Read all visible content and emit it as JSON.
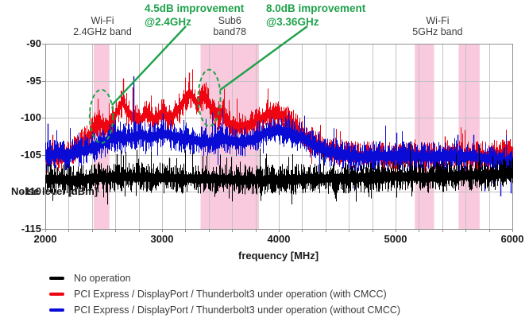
{
  "chart_data": {
    "type": "line",
    "title": "",
    "xlabel": "frequency [MHz]",
    "ylabel": "Noise level [dBm]",
    "xlim": [
      2000,
      6000
    ],
    "ylim": [
      -115,
      -90
    ],
    "x_ticks": [
      "2000",
      "3000",
      "4000",
      "5000",
      "6000"
    ],
    "x_tick_values": [
      2000,
      3000,
      4000,
      5000,
      6000
    ],
    "y_ticks": [
      "-90",
      "-95",
      "-100",
      "-105",
      "-110",
      "-115"
    ],
    "y_tick_values": [
      -90,
      -95,
      -100,
      -105,
      -110,
      -115
    ],
    "grid": {
      "x_step_mhz": 200,
      "y_step_db": 5,
      "color": "#c3c3c3",
      "border_color": "#909090"
    },
    "legend_position": "bottom-left",
    "highlight_band_color": "#f9cadd",
    "highlight_bands": [
      {
        "name": "wifi-2.4ghz",
        "from_mhz": 2415,
        "to_mhz": 2550
      },
      {
        "name": "sub6-band78",
        "from_mhz": 3330,
        "to_mhz": 3830
      },
      {
        "name": "wifi-5ghz-low",
        "from_mhz": 5165,
        "to_mhz": 5330
      },
      {
        "name": "wifi-5ghz-high",
        "from_mhz": 5540,
        "to_mhz": 5720
      }
    ],
    "band_labels": [
      {
        "lines": [
          "Wi-Fi",
          "2.4GHz band"
        ],
        "center_mhz": 2490
      },
      {
        "lines": [
          "Sub6",
          "band78"
        ],
        "center_mhz": 3580
      },
      {
        "lines": [
          "Wi-Fi",
          "5GHz band"
        ],
        "center_mhz": 5360
      }
    ],
    "series": [
      {
        "name": "No operation",
        "color": "#000000",
        "noise_halfwidth_db": 2.1,
        "envelope": [
          [
            2000,
            -108.3
          ],
          [
            2300,
            -108.4
          ],
          [
            2600,
            -107.9
          ],
          [
            2900,
            -108.1
          ],
          [
            3200,
            -108.2
          ],
          [
            3500,
            -108.3
          ],
          [
            3800,
            -108.4
          ],
          [
            4100,
            -108.3
          ],
          [
            4400,
            -108.2
          ],
          [
            4700,
            -108.1
          ],
          [
            5000,
            -107.9
          ],
          [
            5300,
            -108.0
          ],
          [
            5600,
            -107.8
          ],
          [
            6000,
            -107.6
          ]
        ],
        "spikes": [
          [
            2615,
            -104.9
          ],
          [
            3060,
            -105.4
          ],
          [
            4480,
            -110.9
          ],
          [
            5200,
            -105.6
          ]
        ]
      },
      {
        "name": "PCI Express / DisplayPort / Thunderbolt3 under operation (with CMCC)",
        "color": "#ee0511",
        "noise_halfwidth_db": 2.0,
        "envelope": [
          [
            2000,
            -105.4
          ],
          [
            2100,
            -105.2
          ],
          [
            2200,
            -105.0
          ],
          [
            2300,
            -103.6
          ],
          [
            2400,
            -101.9
          ],
          [
            2450,
            -100.4
          ],
          [
            2500,
            -101.3
          ],
          [
            2560,
            -100.7
          ],
          [
            2620,
            -99.0
          ],
          [
            2660,
            -97.7
          ],
          [
            2700,
            -99.3
          ],
          [
            2760,
            -99.9
          ],
          [
            2810,
            -100.3
          ],
          [
            2870,
            -99.4
          ],
          [
            2930,
            -100.2
          ],
          [
            3000,
            -99.3
          ],
          [
            3060,
            -100.2
          ],
          [
            3130,
            -99.0
          ],
          [
            3200,
            -97.4
          ],
          [
            3240,
            -96.8
          ],
          [
            3290,
            -98.0
          ],
          [
            3330,
            -97.4
          ],
          [
            3370,
            -96.9
          ],
          [
            3410,
            -98.3
          ],
          [
            3460,
            -99.7
          ],
          [
            3520,
            -99.3
          ],
          [
            3580,
            -100.8
          ],
          [
            3650,
            -101.3
          ],
          [
            3720,
            -101.0
          ],
          [
            3800,
            -100.6
          ],
          [
            3900,
            -99.5
          ],
          [
            4000,
            -99.7
          ],
          [
            4100,
            -100.5
          ],
          [
            4200,
            -102.2
          ],
          [
            4300,
            -103.4
          ],
          [
            4400,
            -104.2
          ],
          [
            4500,
            -104.7
          ],
          [
            4700,
            -105.1
          ],
          [
            4900,
            -105.2
          ],
          [
            5100,
            -105.2
          ],
          [
            5300,
            -105.3
          ],
          [
            5450,
            -104.9
          ],
          [
            5600,
            -105.2
          ],
          [
            5800,
            -105.1
          ],
          [
            6000,
            -104.7
          ]
        ],
        "spikes": [
          [
            2060,
            -102.3
          ],
          [
            2450,
            -99.2
          ],
          [
            2665,
            -94.7
          ],
          [
            2748,
            -95.9
          ],
          [
            3010,
            -97.5
          ],
          [
            3230,
            -93.9
          ],
          [
            3360,
            -95.4
          ],
          [
            3520,
            -97.7
          ],
          [
            3950,
            -98.1
          ],
          [
            4060,
            -98.6
          ],
          [
            5420,
            -102.5
          ],
          [
            5960,
            -103.1
          ]
        ]
      },
      {
        "name": "PCI Express / DisplayPort / Thunderbolt3 under operation (without CMCC)",
        "color": "#0b0bd6",
        "noise_halfwidth_db": 2.1,
        "envelope": [
          [
            2000,
            -105.1
          ],
          [
            2100,
            -104.9
          ],
          [
            2200,
            -105.1
          ],
          [
            2300,
            -104.5
          ],
          [
            2400,
            -104.1
          ],
          [
            2500,
            -103.3
          ],
          [
            2600,
            -102.5
          ],
          [
            2700,
            -102.7
          ],
          [
            2800,
            -102.3
          ],
          [
            2900,
            -102.7
          ],
          [
            3000,
            -102.1
          ],
          [
            3100,
            -102.5
          ],
          [
            3200,
            -102.7
          ],
          [
            3300,
            -103.1
          ],
          [
            3400,
            -103.3
          ],
          [
            3500,
            -102.7
          ],
          [
            3600,
            -103.1
          ],
          [
            3700,
            -103.3
          ],
          [
            3800,
            -102.7
          ],
          [
            3900,
            -101.9
          ],
          [
            4000,
            -101.7
          ],
          [
            4100,
            -102.1
          ],
          [
            4200,
            -102.7
          ],
          [
            4300,
            -103.7
          ],
          [
            4400,
            -104.5
          ],
          [
            4500,
            -104.9
          ],
          [
            4700,
            -105.3
          ],
          [
            4900,
            -105.1
          ],
          [
            5100,
            -105.2
          ],
          [
            5300,
            -105.3
          ],
          [
            5500,
            -105.1
          ],
          [
            5700,
            -105.3
          ],
          [
            5850,
            -105.6
          ],
          [
            6000,
            -106.0
          ]
        ],
        "spikes": [
          [
            2020,
            -100.8
          ],
          [
            2400,
            -101.9
          ],
          [
            2755,
            -94.4
          ],
          [
            3010,
            -99.4
          ],
          [
            3450,
            -100.8
          ],
          [
            4080,
            -99.3
          ],
          [
            4350,
            -109.2
          ],
          [
            4650,
            -109.7
          ],
          [
            5010,
            -102.0
          ],
          [
            5530,
            -102.3
          ],
          [
            5670,
            -102.3
          ],
          [
            5760,
            -109.9
          ],
          [
            5900,
            -110.6
          ],
          [
            5985,
            -110.2
          ]
        ]
      }
    ],
    "annotations": [
      {
        "lines": [
          "4.5dB improvement",
          "@2.4GHz"
        ],
        "color": "#1fa24b",
        "ellipse_center_mhz": 2480,
        "ellipse_center_dbm": -99.8,
        "ellipse_rx_mhz": 100,
        "ellipse_ry_db": 3.6
      },
      {
        "lines": [
          "8.0dB improvement",
          "@3.36GHz"
        ],
        "color": "#1fa24b",
        "ellipse_center_mhz": 3405,
        "ellipse_center_dbm": -97.3,
        "ellipse_rx_mhz": 95,
        "ellipse_ry_db": 3.8
      }
    ]
  },
  "legend": {
    "items": [
      {
        "label": "No operation",
        "color": "#000000"
      },
      {
        "label": "PCI Express / DisplayPort / Thunderbolt3 under operation (with CMCC)",
        "color": "#ee0511"
      },
      {
        "label": "PCI Express / DisplayPort / Thunderbolt3 under operation (without CMCC)",
        "color": "#0b0bd6"
      }
    ]
  }
}
